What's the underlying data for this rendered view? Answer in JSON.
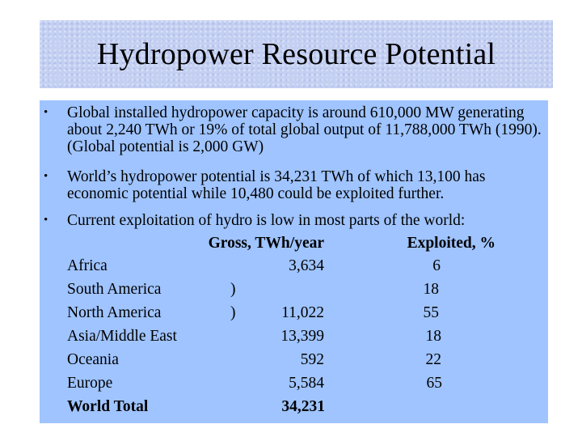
{
  "title": "Hydropower Resource Potential",
  "bullets": [
    "Global installed hydropower capacity is around 610,000 MW generating about 2,240 TWh or 19% of total global output of 11,788,000 TWh (1990). (Global potential is 2,000 GW)",
    "World’s hydropower potential is 34,231 TWh of which 13,100 has economic potential while 10,480 could be exploited further.",
    "Current exploitation of hydro is low in most parts of the world:"
  ],
  "bullet_symbol": "•",
  "table": {
    "headers": {
      "gross": "Gross, TWh/year",
      "exploited": "Exploited, %"
    },
    "rows": [
      {
        "region": "Africa",
        "bracket": "",
        "gross": "3,634",
        "exploited": "6"
      },
      {
        "region": "South America",
        "bracket": ")",
        "gross": "",
        "exploited": "18"
      },
      {
        "region": "North America",
        "bracket": ")",
        "gross": "11,022",
        "exploited": "55"
      },
      {
        "region": "Asia/Middle East",
        "bracket": "",
        "gross": "13,399",
        "exploited": "18"
      },
      {
        "region": "Oceania",
        "bracket": "",
        "gross": "592",
        "exploited": "22"
      },
      {
        "region": "Europe",
        "bracket": "",
        "gross": "5,584",
        "exploited": "65"
      }
    ],
    "total": {
      "region": "World Total",
      "gross": "34,231"
    }
  },
  "colors": {
    "title_background": "#c4d0f2",
    "content_background": "#9fc4ff"
  }
}
